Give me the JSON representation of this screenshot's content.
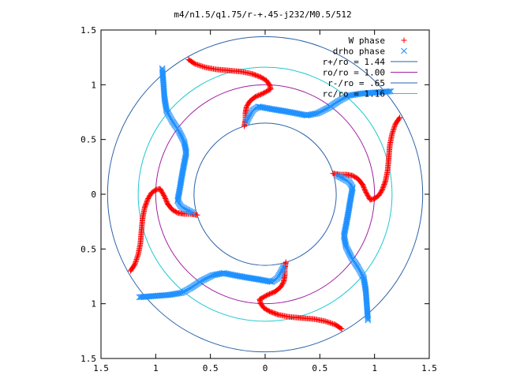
{
  "chart_data": {
    "type": "scatter",
    "title": "m4/n1.5/q1.75/r-+.45-j232/M0.5/512",
    "xlabel": "",
    "ylabel": "",
    "xlim": [
      -1.5,
      1.5
    ],
    "ylim": [
      -1.5,
      1.5
    ],
    "x_ticks": [
      -1.5,
      -1,
      -0.5,
      0,
      0.5,
      1,
      1.5
    ],
    "x_tick_labels": [
      "1.5",
      "1",
      "0.5",
      "0",
      "0.5",
      "1",
      "1.5"
    ],
    "y_ticks": [
      1.5,
      1,
      0.5,
      0,
      -0.5,
      -1,
      -1.5
    ],
    "y_tick_labels": [
      "1.5",
      "1",
      "0.5",
      "0",
      "0.5",
      "1",
      "1.5"
    ],
    "grid": false,
    "legend_position": "top-right",
    "colors": {
      "w_phase": "#ff0000",
      "drho_phase": "#1e90ff",
      "r_plus": "#2b62a8",
      "ro": "#a020a0",
      "r_minus": "#2b62a8",
      "rc": "#1ec8d2"
    },
    "circles": [
      {
        "legend": "r+/ro = 1.44",
        "radius": 1.44,
        "color_key": "r_plus"
      },
      {
        "legend": "ro/ro = 1.00",
        "radius": 1.0,
        "color_key": "ro"
      },
      {
        "legend": "r-/ro = .65",
        "radius": 0.65,
        "color_key": "r_minus"
      },
      {
        "legend": "rc/ro = 1.16",
        "radius": 1.16,
        "color_key": "rc"
      }
    ],
    "series": [
      {
        "name": "W phase",
        "marker": "plus",
        "color_key": "w_phase",
        "arms": [
          [
            [
              -0.05,
              -0.96
            ],
            [
              -0.04,
              -1.0
            ],
            [
              -0.01,
              -1.04
            ],
            [
              0.04,
              -1.07
            ],
            [
              0.12,
              -1.1
            ],
            [
              0.22,
              -1.12
            ],
            [
              0.33,
              -1.13
            ],
            [
              0.45,
              -1.14
            ],
            [
              0.55,
              -1.16
            ],
            [
              0.64,
              -1.19
            ],
            [
              0.7,
              -1.23
            ]
          ],
          [
            [
              -0.05,
              -0.96
            ],
            [
              0.02,
              -0.92
            ],
            [
              0.09,
              -0.89
            ],
            [
              0.14,
              -0.85
            ],
            [
              0.17,
              -0.8
            ],
            [
              0.18,
              -0.74
            ],
            [
              0.18,
              -0.68
            ],
            [
              0.19,
              -0.62
            ]
          ]
        ]
      },
      {
        "name": "drho phase",
        "marker": "x",
        "color_key": "drho_phase",
        "arms": [
          [
            [
              0.06,
              -0.8
            ],
            [
              -0.05,
              -0.78
            ],
            [
              -0.17,
              -0.76
            ],
            [
              -0.28,
              -0.74
            ],
            [
              -0.38,
              -0.72
            ],
            [
              -0.48,
              -0.74
            ],
            [
              -0.58,
              -0.79
            ],
            [
              -0.67,
              -0.85
            ],
            [
              -0.76,
              -0.9
            ],
            [
              -0.88,
              -0.92
            ],
            [
              -1.02,
              -0.93
            ],
            [
              -1.15,
              -0.94
            ]
          ],
          [
            [
              0.06,
              -0.8
            ],
            [
              0.11,
              -0.77
            ],
            [
              0.14,
              -0.72
            ],
            [
              0.17,
              -0.66
            ]
          ]
        ]
      }
    ]
  }
}
